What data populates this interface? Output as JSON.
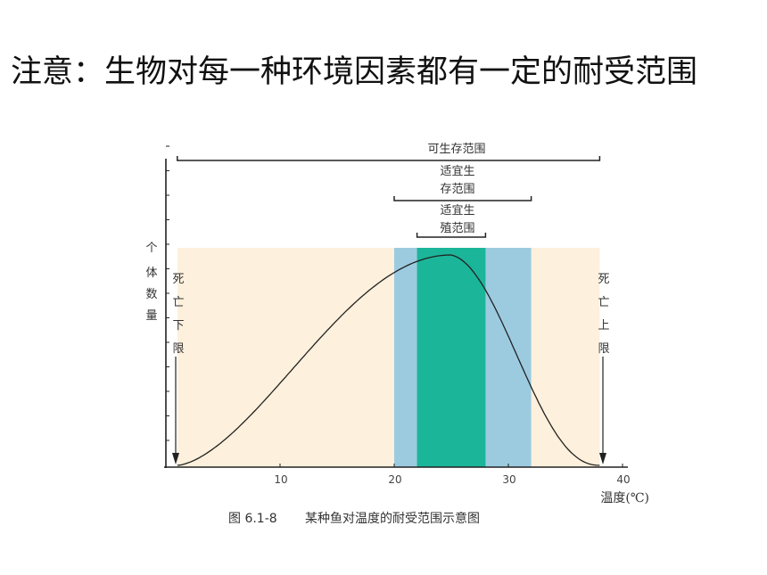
{
  "headline": "注意：生物对每一种环境因素都有一定的耐受范围",
  "ranges": {
    "survival": "可生存范围",
    "suitable_survival_line1": "适宜生",
    "suitable_survival_line2": "存范围",
    "suitable_breeding_line1": "适宜生",
    "suitable_breeding_line2": "殖范围"
  },
  "y_axis_label": [
    "个",
    "体",
    "数",
    "量"
  ],
  "lower_limit_label": [
    "死",
    "亡",
    "下",
    "限"
  ],
  "upper_limit_label": [
    "死",
    "亡",
    "上",
    "限"
  ],
  "x_ticks": [
    "10",
    "20",
    "30",
    "40"
  ],
  "x_axis_label": "温度(℃)",
  "caption_number": "图 6.1-8",
  "caption_text": "某种鱼对温度的耐受范围示意图",
  "chart_data": {
    "type": "area",
    "x_unit": "℃",
    "xlim": [
      0,
      40
    ],
    "tolerance_range": [
      1,
      38
    ],
    "suitable_survival_range": [
      20,
      32
    ],
    "suitable_breeding_range": [
      22,
      28
    ],
    "peak_x": 25,
    "colors": {
      "tolerance": "#fdf0dc",
      "suitable_survival": "#9ccbe0",
      "suitable_breeding": "#1bb59a"
    }
  }
}
